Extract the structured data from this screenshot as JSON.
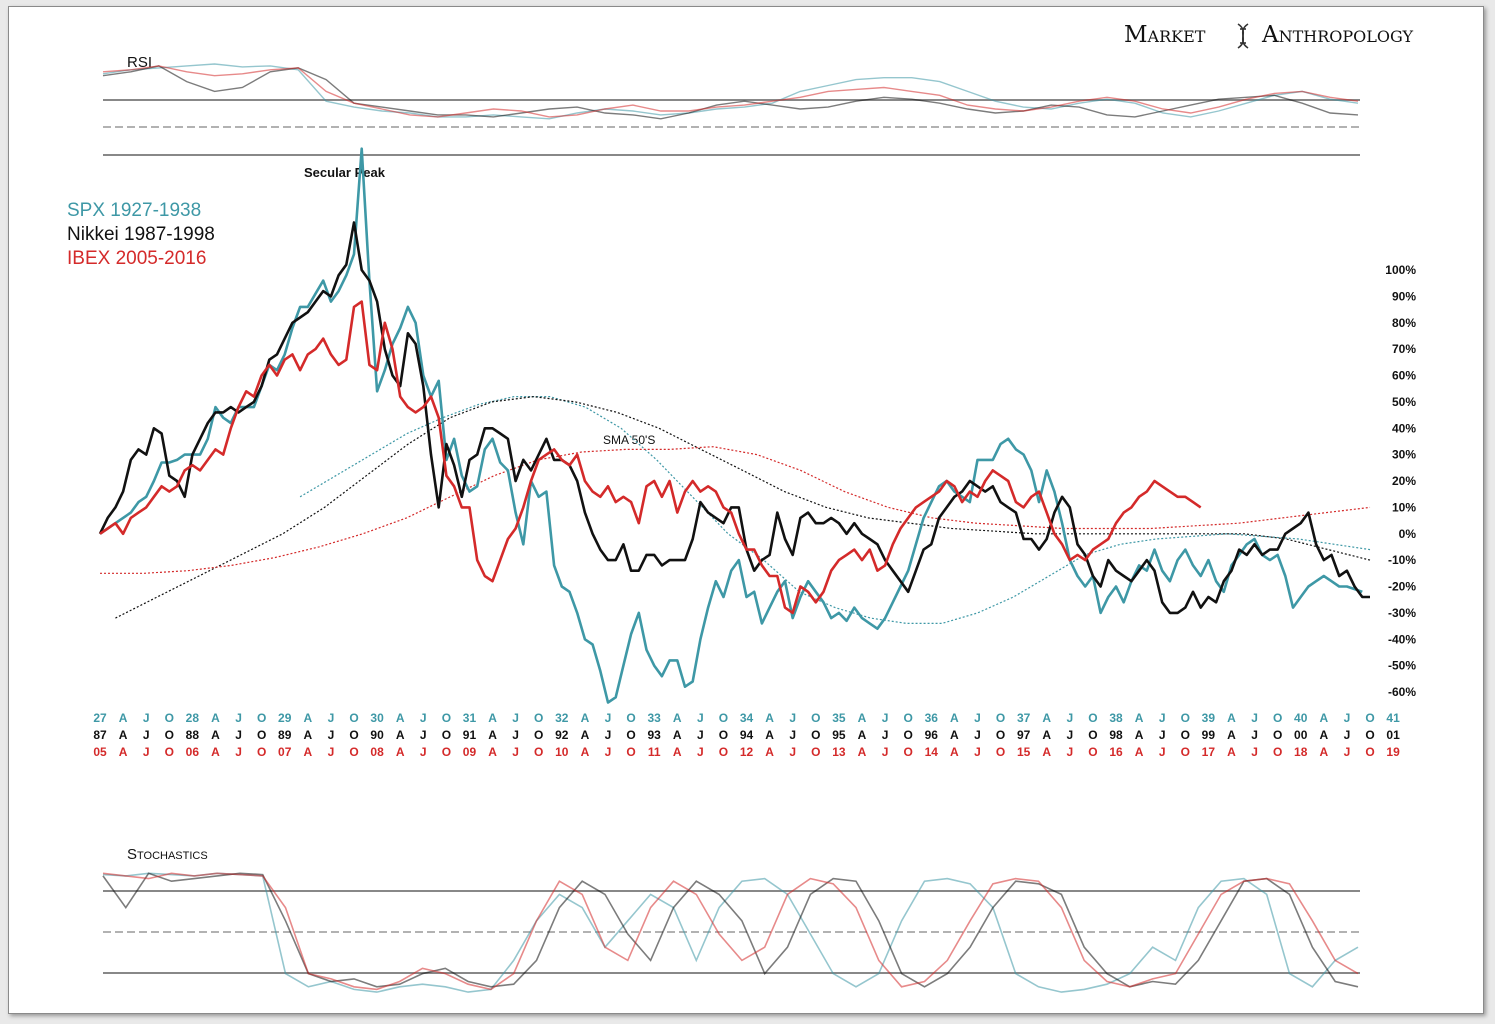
{
  "brand": {
    "left": "Market",
    "right": "Anthropology",
    "icon": "dna-helix-icon"
  },
  "panels": {
    "rsi_label": "RSI",
    "stoch_label": "Stochastics"
  },
  "colors": {
    "spx": "#3e98a6",
    "nikkei": "#111111",
    "ibex": "#d42a2a",
    "guide": "#888888"
  },
  "chart_data": {
    "type": "line",
    "title": "",
    "annotations": {
      "peak": "Secular Peak",
      "sma": "SMA 50'S"
    },
    "legend": [
      {
        "name": "SPX 1927-1938",
        "color": "#3e98a6"
      },
      {
        "name": "Nikkei 1987-1998",
        "color": "#111111"
      },
      {
        "name": "IBEX 2005-2016",
        "color": "#d42a2a"
      }
    ],
    "y_ticks": [
      "100%",
      "90%",
      "80%",
      "70%",
      "60%",
      "50%",
      "40%",
      "30%",
      "20%",
      "10%",
      "0%",
      "-10%",
      "-20%",
      "-30%",
      "-40%",
      "-50%",
      "-60%"
    ],
    "ylim": [
      -60,
      100
    ],
    "x_range_months": [
      0,
      165
    ],
    "x_axis_rows": [
      {
        "name": "SPX",
        "color": "#3e98a6",
        "labels": [
          "27",
          "A",
          "J",
          "O",
          "28",
          "A",
          "J",
          "O",
          "29",
          "A",
          "J",
          "O",
          "30",
          "A",
          "J",
          "O",
          "31",
          "A",
          "J",
          "O",
          "32",
          "A",
          "J",
          "O",
          "33",
          "A",
          "J",
          "O",
          "34",
          "A",
          "J",
          "O",
          "35",
          "A",
          "J",
          "O",
          "36",
          "A",
          "J",
          "O",
          "37",
          "A",
          "J",
          "O",
          "38",
          "A",
          "J",
          "O",
          "39",
          "A",
          "J",
          "O",
          "40",
          "A",
          "J",
          "O",
          "41"
        ]
      },
      {
        "name": "Nikkei",
        "color": "#111111",
        "labels": [
          "87",
          "A",
          "J",
          "O",
          "88",
          "A",
          "J",
          "O",
          "89",
          "A",
          "J",
          "O",
          "90",
          "A",
          "J",
          "O",
          "91",
          "A",
          "J",
          "O",
          "92",
          "A",
          "J",
          "O",
          "93",
          "A",
          "J",
          "O",
          "94",
          "A",
          "J",
          "O",
          "95",
          "A",
          "J",
          "O",
          "96",
          "A",
          "J",
          "O",
          "97",
          "A",
          "J",
          "O",
          "98",
          "A",
          "J",
          "O",
          "99",
          "A",
          "J",
          "O",
          "00",
          "A",
          "J",
          "O",
          "01"
        ]
      },
      {
        "name": "IBEX",
        "color": "#d42a2a",
        "labels": [
          "05",
          "A",
          "J",
          "O",
          "06",
          "A",
          "J",
          "O",
          "07",
          "A",
          "J",
          "O",
          "08",
          "A",
          "J",
          "O",
          "09",
          "A",
          "J",
          "O",
          "10",
          "A",
          "J",
          "O",
          "11",
          "A",
          "J",
          "O",
          "12",
          "A",
          "J",
          "O",
          "13",
          "A",
          "J",
          "O",
          "14",
          "A",
          "J",
          "O",
          "15",
          "A",
          "J",
          "O",
          "16",
          "A",
          "J",
          "O",
          "17",
          "A",
          "J",
          "O",
          "18",
          "A",
          "J",
          "O",
          "19"
        ]
      }
    ],
    "series": [
      {
        "name": "SPX 1927-1938",
        "color": "#3e98a6",
        "x_step": 1,
        "values": [
          0,
          2,
          4,
          6,
          8,
          12,
          14,
          20,
          27,
          27,
          28,
          30,
          30,
          30,
          36,
          48,
          44,
          42,
          48,
          48,
          48,
          56,
          64,
          62,
          68,
          78,
          86,
          86,
          91,
          96,
          88,
          92,
          98,
          106,
          146,
          96,
          54,
          62,
          72,
          78,
          86,
          80,
          60,
          52,
          58,
          28,
          36,
          22,
          16,
          18,
          32,
          36,
          27,
          24,
          8,
          -4,
          20,
          14,
          16,
          -12,
          -20,
          -22,
          -30,
          -40,
          -42,
          -52,
          -64,
          -62,
          -50,
          -38,
          -30,
          -44,
          -50,
          -54,
          -48,
          -48,
          -58,
          -56,
          -40,
          -28,
          -18,
          -24,
          -14,
          -10,
          -24,
          -22,
          -34,
          -28,
          -22,
          -18,
          -32,
          -24,
          -18,
          -22,
          -26,
          -32,
          -30,
          -33,
          -28,
          -32,
          -34,
          -36,
          -32,
          -26,
          -20,
          -14,
          -4,
          6,
          12,
          18,
          20,
          16,
          14,
          12,
          28,
          28,
          28,
          34,
          36,
          32,
          30,
          24,
          12,
          24,
          16,
          4,
          -10,
          -16,
          -20,
          -16,
          -30,
          -24,
          -20,
          -26,
          -18,
          -12,
          -14,
          -6,
          -14,
          -18,
          -10,
          -6,
          -12,
          -16,
          -10,
          -18,
          -22,
          -12,
          -8,
          -4,
          -2,
          -8,
          -10,
          -8,
          -16,
          -28,
          -24,
          -20,
          -18,
          -16,
          -18,
          -20,
          -20,
          -21,
          -22
        ]
      },
      {
        "name": "Nikkei 1987-1998",
        "color": "#111111",
        "x_step": 1,
        "values": [
          0,
          6,
          10,
          16,
          28,
          32,
          30,
          40,
          38,
          22,
          20,
          14,
          30,
          36,
          42,
          46,
          46,
          48,
          46,
          48,
          50,
          56,
          66,
          68,
          74,
          80,
          82,
          84,
          88,
          92,
          90,
          98,
          102,
          118,
          100,
          96,
          88,
          70,
          60,
          56,
          76,
          72,
          56,
          30,
          10,
          34,
          26,
          14,
          28,
          30,
          40,
          40,
          38,
          36,
          20,
          28,
          24,
          30,
          36,
          28,
          28,
          26,
          20,
          8,
          0,
          -6,
          -10,
          -10,
          -4,
          -14,
          -14,
          -8,
          -8,
          -12,
          -10,
          -10,
          -10,
          -2,
          12,
          8,
          6,
          4,
          10,
          10,
          -6,
          -14,
          -10,
          -8,
          8,
          -2,
          -8,
          6,
          8,
          4,
          4,
          6,
          4,
          0,
          4,
          0,
          -2,
          -4,
          -10,
          -14,
          -18,
          -22,
          -14,
          -6,
          -4,
          6,
          10,
          14,
          16,
          20,
          18,
          16,
          18,
          12,
          10,
          8,
          -2,
          -2,
          -6,
          -2,
          8,
          14,
          10,
          -4,
          -8,
          -16,
          -20,
          -10,
          -14,
          -16,
          -18,
          -14,
          -10,
          -14,
          -26,
          -30,
          -30,
          -28,
          -22,
          -28,
          -24,
          -26,
          -18,
          -14,
          -6,
          -8,
          -4,
          -8,
          -6,
          -6,
          0,
          2,
          4,
          8,
          -4,
          -10,
          -8,
          -16,
          -14,
          -20,
          -24,
          -24
        ]
      },
      {
        "name": "IBEX 2005-2016",
        "color": "#d42a2a",
        "x_step": 1,
        "values": [
          0,
          2,
          4,
          0,
          6,
          8,
          10,
          14,
          18,
          16,
          18,
          24,
          26,
          24,
          28,
          32,
          30,
          40,
          48,
          54,
          52,
          60,
          64,
          60,
          66,
          68,
          62,
          68,
          70,
          74,
          68,
          64,
          66,
          86,
          88,
          64,
          62,
          80,
          70,
          52,
          48,
          46,
          48,
          52,
          44,
          22,
          18,
          10,
          10,
          -10,
          -16,
          -18,
          -10,
          -2,
          2,
          10,
          20,
          28,
          30,
          32,
          28,
          26,
          30,
          20,
          16,
          14,
          18,
          12,
          14,
          12,
          4,
          18,
          20,
          14,
          20,
          8,
          16,
          20,
          16,
          18,
          16,
          10,
          8,
          0,
          -6,
          -6,
          -12,
          -16,
          -16,
          -28,
          -30,
          -20,
          -22,
          -26,
          -22,
          -14,
          -10,
          -8,
          -6,
          -10,
          -6,
          -14,
          -12,
          -4,
          2,
          6,
          10,
          12,
          14,
          16,
          20,
          18,
          12,
          16,
          14,
          20,
          24,
          22,
          20,
          12,
          10,
          14,
          16,
          8,
          0,
          -4,
          -10,
          -8,
          -10,
          -6,
          -4,
          -2,
          4,
          8,
          10,
          14,
          16,
          20,
          18,
          16,
          14,
          14,
          12,
          10
        ]
      },
      {
        "name": "SMA SPX",
        "color": "#3e98a6",
        "dashed": true,
        "x_start": 26,
        "values": [
          14,
          22,
          30,
          38,
          44,
          49,
          52,
          52,
          48,
          40,
          28,
          14,
          0,
          -10,
          -22,
          -28,
          -32,
          -34,
          -34,
          -30,
          -24,
          -16,
          -8,
          -4,
          -2,
          -1,
          0,
          -1,
          -2,
          -4,
          -6
        ]
      },
      {
        "name": "SMA Nikkei",
        "color": "#111111",
        "dashed": true,
        "x_start": 2,
        "values": [
          -32,
          -24,
          -16,
          -8,
          0,
          10,
          22,
          34,
          44,
          50,
          52,
          50,
          46,
          40,
          32,
          24,
          16,
          10,
          6,
          4,
          2,
          1,
          0,
          0,
          0,
          0,
          0,
          0,
          -2,
          -6,
          -10
        ]
      },
      {
        "name": "SMA IBEX",
        "color": "#d42a2a",
        "dashed": true,
        "x_start": 0,
        "values": [
          -15,
          -15,
          -14,
          -12,
          -9,
          -5,
          0,
          6,
          14,
          22,
          28,
          31,
          32,
          32,
          33,
          30,
          24,
          16,
          10,
          6,
          4,
          3,
          2,
          2,
          2,
          3,
          4,
          6,
          8,
          10
        ]
      }
    ],
    "rsi_series": [
      {
        "name": "SPX",
        "color": "#3e98a6",
        "values": [
          88,
          92,
          94,
          96,
          98,
          95,
          96,
          92,
          60,
          54,
          50,
          48,
          44,
          44,
          46,
          44,
          42,
          48,
          52,
          50,
          46,
          48,
          52,
          54,
          58,
          70,
          76,
          82,
          84,
          84,
          80,
          70,
          60,
          54,
          52,
          58,
          62,
          58,
          48,
          44,
          50,
          58,
          66,
          70,
          62,
          58
        ]
      },
      {
        "name": "Nikkei",
        "color": "#111111",
        "values": [
          86,
          90,
          96,
          80,
          70,
          74,
          90,
          94,
          82,
          58,
          54,
          50,
          46,
          46,
          44,
          48,
          52,
          54,
          48,
          46,
          42,
          48,
          56,
          60,
          56,
          52,
          54,
          60,
          64,
          62,
          58,
          52,
          48,
          50,
          56,
          54,
          46,
          44,
          50,
          56,
          62,
          64,
          66,
          58,
          48,
          46
        ]
      },
      {
        "name": "IBEX",
        "color": "#d42a2a",
        "values": [
          90,
          92,
          96,
          90,
          86,
          88,
          92,
          94,
          70,
          58,
          52,
          46,
          44,
          48,
          52,
          50,
          44,
          46,
          52,
          56,
          50,
          50,
          54,
          56,
          60,
          64,
          70,
          72,
          74,
          70,
          66,
          56,
          52,
          50,
          54,
          60,
          64,
          60,
          52,
          48,
          54,
          62,
          68,
          70,
          64,
          60
        ]
      }
    ],
    "stoch_series": [
      {
        "name": "SPX",
        "color": "#3e98a6",
        "values": [
          95,
          94,
          96,
          95,
          94,
          96,
          95,
          94,
          20,
          10,
          14,
          8,
          6,
          10,
          12,
          10,
          6,
          8,
          30,
          60,
          80,
          70,
          40,
          60,
          80,
          70,
          30,
          70,
          90,
          92,
          80,
          50,
          20,
          10,
          20,
          60,
          90,
          92,
          88,
          70,
          20,
          10,
          6,
          8,
          12,
          20,
          40,
          30,
          70,
          90,
          92,
          80,
          20,
          10,
          30,
          40
        ]
      },
      {
        "name": "Nikkei",
        "color": "#111111",
        "values": [
          94,
          70,
          96,
          90,
          92,
          94,
          96,
          95,
          60,
          20,
          14,
          16,
          10,
          12,
          20,
          24,
          14,
          10,
          12,
          30,
          70,
          90,
          80,
          50,
          30,
          70,
          90,
          80,
          60,
          20,
          40,
          80,
          92,
          90,
          60,
          20,
          10,
          20,
          40,
          70,
          90,
          88,
          80,
          40,
          20,
          10,
          14,
          12,
          30,
          60,
          90,
          92,
          80,
          40,
          14,
          10
        ]
      },
      {
        "name": "IBEX",
        "color": "#d42a2a",
        "values": [
          96,
          94,
          92,
          96,
          94,
          96,
          95,
          94,
          70,
          20,
          16,
          10,
          8,
          14,
          24,
          20,
          12,
          8,
          20,
          60,
          90,
          80,
          40,
          30,
          70,
          90,
          80,
          50,
          30,
          40,
          80,
          92,
          88,
          70,
          30,
          10,
          14,
          30,
          60,
          88,
          92,
          90,
          70,
          30,
          14,
          10,
          16,
          20,
          50,
          80,
          90,
          92,
          88,
          60,
          30,
          20
        ]
      }
    ]
  }
}
